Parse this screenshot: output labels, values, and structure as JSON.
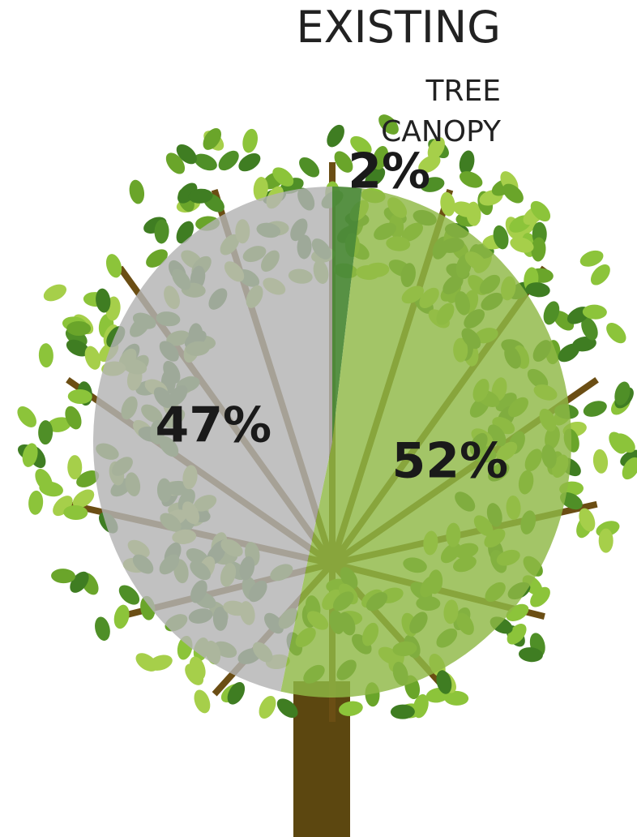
{
  "chart_data": {
    "type": "pie",
    "title": "EXISTING",
    "subtitle": "TREE CANOPY",
    "categories": [
      null,
      null,
      null
    ],
    "values": [
      2,
      52,
      47
    ],
    "value_labels": [
      "2%",
      "52%",
      "47%"
    ],
    "colors": [
      "#4e8b3a",
      "#8fb845",
      "#b3b3b3"
    ]
  }
}
